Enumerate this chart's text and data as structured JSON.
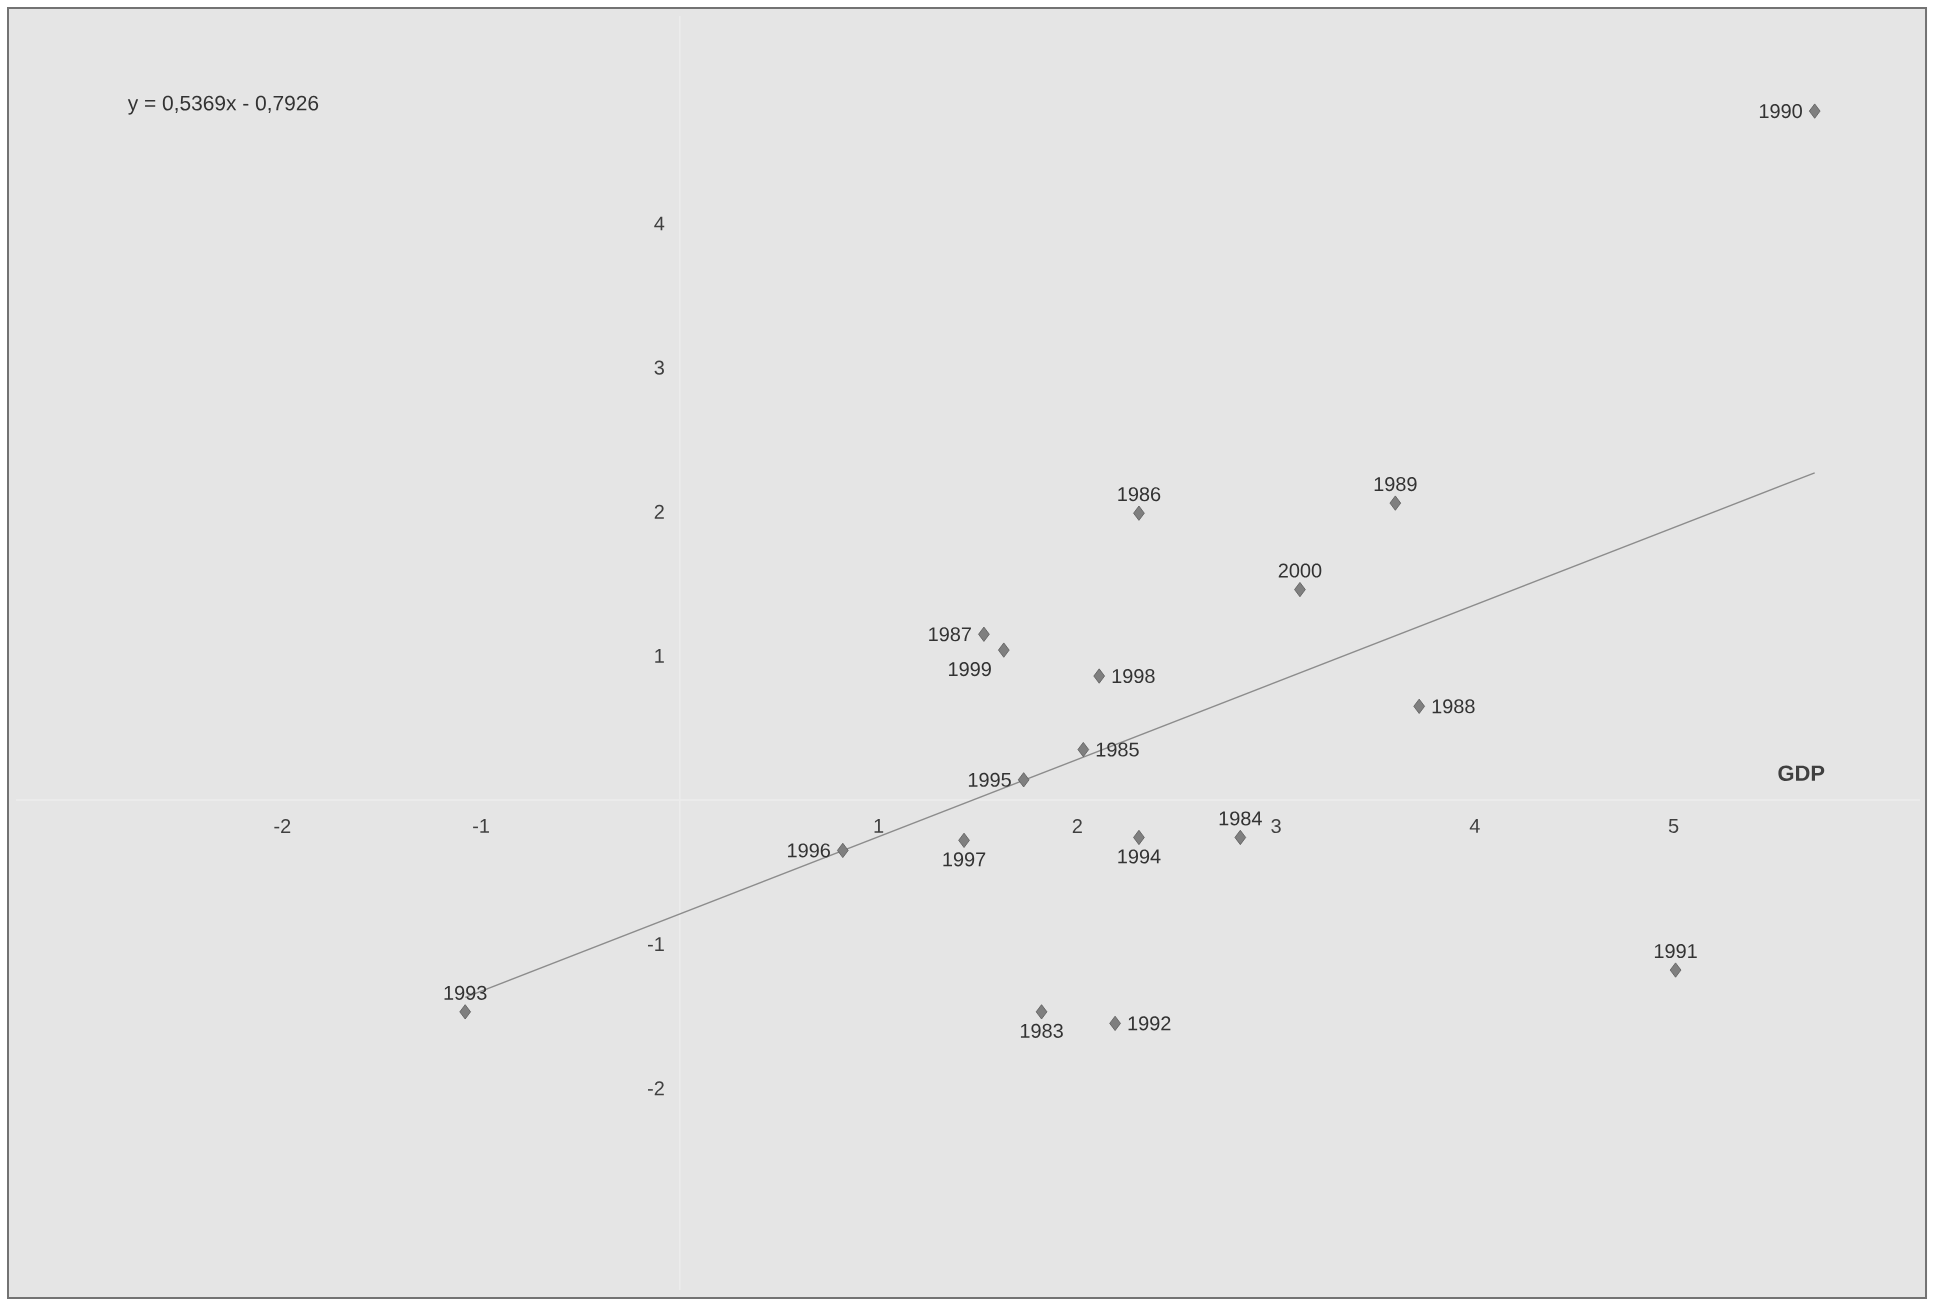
{
  "chart_data": {
    "type": "scatter",
    "xlabel": "GDP",
    "xlim": [
      -3.34,
      6.24
    ],
    "ylim": [
      -3.4,
      5.44
    ],
    "xticks": [
      -2,
      -1,
      1,
      2,
      3,
      4,
      5
    ],
    "yticks": [
      -2,
      -1,
      1,
      2,
      3,
      4
    ],
    "grid": false,
    "marker": "diamond",
    "series": [
      {
        "color": "#7f7f7f",
        "x": [
          1.82,
          2.82,
          2.03,
          2.31,
          1.53,
          3.72,
          3.6,
          5.71,
          5.01,
          2.19,
          -1.08,
          2.31,
          1.73,
          0.82,
          1.43,
          2.11,
          1.63,
          3.12
        ],
        "values": [
          -1.47,
          -0.26,
          0.35,
          1.99,
          1.15,
          0.65,
          2.06,
          4.78,
          -1.18,
          -1.55,
          -1.47,
          -0.26,
          0.14,
          -0.35,
          -0.28,
          0.86,
          1.04,
          1.46
        ]
      },
      {
        "type": "line",
        "marker": "none",
        "color": "#8c8c8c",
        "x": [
          -1.08,
          5.71
        ],
        "values": [
          -1.37,
          2.27
        ]
      }
    ],
    "annotations": [
      "y = 0,5369x - 0,7926",
      {
        "text": "1983",
        "x": 1.82,
        "y": -1.47
      },
      {
        "text": "1984",
        "x": 2.82,
        "y": -0.26
      },
      {
        "text": "1985",
        "x": 2.03,
        "y": 0.35
      },
      {
        "text": "1986",
        "x": 2.31,
        "y": 1.99
      },
      {
        "text": "1987",
        "x": 1.53,
        "y": 1.15
      },
      {
        "text": "1988",
        "x": 3.72,
        "y": 0.65
      },
      {
        "text": "1989",
        "x": 3.6,
        "y": 2.06
      },
      {
        "text": "1990",
        "x": 5.71,
        "y": 4.78
      },
      {
        "text": "1991",
        "x": 5.01,
        "y": -1.18
      },
      {
        "text": "1992",
        "x": 2.19,
        "y": -1.55
      },
      {
        "text": "1993",
        "x": -1.08,
        "y": -1.47
      },
      {
        "text": "1994",
        "x": 2.31,
        "y": -0.26
      },
      {
        "text": "1995",
        "x": 1.73,
        "y": 0.14
      },
      {
        "text": "1996",
        "x": 0.82,
        "y": -0.35
      },
      {
        "text": "1997",
        "x": 1.43,
        "y": -0.28
      },
      {
        "text": "1998",
        "x": 2.11,
        "y": 0.86
      },
      {
        "text": "1999",
        "x": 1.63,
        "y": 1.04
      },
      {
        "text": "2000",
        "x": 3.12,
        "y": 1.46
      }
    ]
  }
}
